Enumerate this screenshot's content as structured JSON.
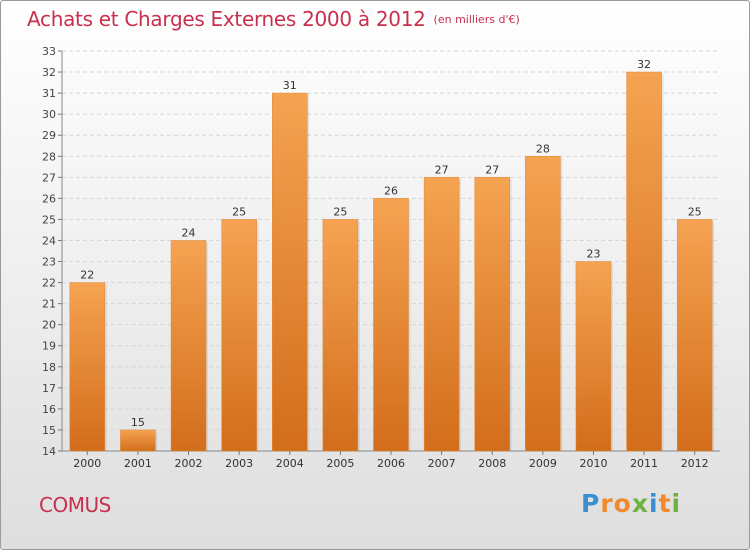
{
  "chart_data": {
    "type": "bar",
    "title": "Achats et Charges Externes 2000 à 2012",
    "subtitle": "(en milliers d'€)",
    "categories": [
      "2000",
      "2001",
      "2002",
      "2003",
      "2004",
      "2005",
      "2006",
      "2007",
      "2008",
      "2009",
      "2010",
      "2011",
      "2012"
    ],
    "values": [
      22,
      15,
      24,
      25,
      31,
      25,
      26,
      27,
      27,
      28,
      23,
      32,
      25
    ],
    "ylim": [
      14,
      33
    ],
    "yticks": [
      14,
      15,
      16,
      17,
      18,
      19,
      20,
      21,
      22,
      23,
      24,
      25,
      26,
      27,
      28,
      29,
      30,
      31,
      32,
      33
    ],
    "grid": true,
    "bar_color": "#f08a2c",
    "bar_color_light": "#f5a352",
    "bar_color_dark": "#d26d1b"
  },
  "footer": {
    "commune": "COMUS",
    "brand": "Proxiti",
    "brand_colors": [
      "#3a8fd0",
      "#f08a2c",
      "#f08a2c",
      "#6db33f",
      "#3a8fd0",
      "#f08a2c",
      "#6db33f"
    ]
  },
  "colors": {
    "title": "#c8304e"
  }
}
